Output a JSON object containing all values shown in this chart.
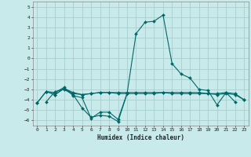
{
  "background_color": "#c8eaea",
  "grid_color": "#a8cece",
  "line_color": "#006868",
  "xlabel": "Humidex (Indice chaleur)",
  "ylim": [
    -6.5,
    5.5
  ],
  "xlim": [
    -0.5,
    23.5
  ],
  "yticks": [
    -6,
    -5,
    -4,
    -3,
    -2,
    -1,
    0,
    1,
    2,
    3,
    4,
    5
  ],
  "xticks": [
    0,
    1,
    2,
    3,
    4,
    5,
    6,
    7,
    8,
    9,
    10,
    11,
    12,
    13,
    14,
    15,
    16,
    17,
    18,
    19,
    20,
    21,
    22,
    23
  ],
  "series": [
    [
      null,
      -4.2,
      -3.2,
      -3.0,
      -3.5,
      -4.8,
      -5.7,
      -5.5,
      -5.6,
      -6.1,
      -3.4,
      2.4,
      3.5,
      3.6,
      4.2,
      -0.5,
      -1.5,
      -1.9,
      -3.0,
      -3.1,
      -4.5,
      -3.3,
      -4.2,
      null
    ],
    [
      null,
      -3.2,
      -3.3,
      -2.8,
      -3.6,
      -3.8,
      -5.8,
      -5.2,
      -5.2,
      -5.9,
      -3.4,
      null,
      null,
      null,
      null,
      null,
      null,
      null,
      null,
      null,
      null,
      null,
      null,
      null
    ],
    [
      -4.3,
      -3.2,
      -3.5,
      -2.9,
      -3.4,
      -3.5,
      -3.4,
      -3.3,
      -3.3,
      -3.4,
      -3.4,
      -3.4,
      -3.4,
      -3.4,
      -3.3,
      -3.3,
      -3.3,
      -3.3,
      -3.3,
      -3.4,
      -3.4,
      -3.3,
      -3.4,
      -4.0
    ],
    [
      -4.3,
      -3.2,
      -3.5,
      -2.9,
      -3.3,
      -3.5,
      -3.4,
      -3.3,
      -3.3,
      -3.3,
      -3.3,
      -3.3,
      -3.3,
      -3.3,
      -3.3,
      -3.4,
      -3.4,
      -3.4,
      -3.4,
      -3.4,
      -3.5,
      -3.4,
      -3.5,
      -4.0
    ]
  ]
}
